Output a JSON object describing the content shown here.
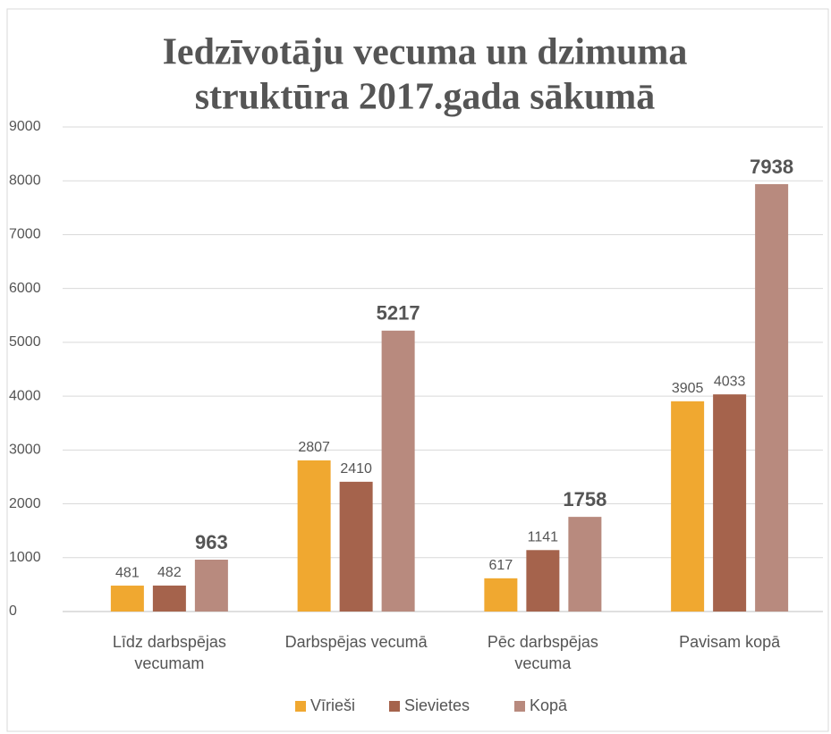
{
  "chart_data": {
    "type": "bar",
    "title": [
      "Iedzīvotāju vecuma un dzimuma",
      "struktūra 2017.gada sākumā"
    ],
    "categories": [
      "Līdz darbspējas vecumam",
      "Darbspējas vecumā",
      "Pēc darbspējas vecuma",
      "Pavisam kopā"
    ],
    "series": [
      {
        "name": "Vīrieši",
        "color": "#f0a830",
        "values": [
          481,
          2807,
          617,
          3905
        ]
      },
      {
        "name": "Sievietes",
        "color": "#a5634c",
        "values": [
          482,
          2410,
          1141,
          4033
        ]
      },
      {
        "name": "Kopā",
        "color": "#b88a7e",
        "values": [
          963,
          5217,
          1758,
          7938
        ]
      }
    ],
    "ylim": [
      0,
      9000
    ],
    "yticks": [
      0,
      1000,
      2000,
      3000,
      4000,
      5000,
      6000,
      7000,
      8000,
      9000
    ],
    "grid": true,
    "legend": "bottom"
  }
}
